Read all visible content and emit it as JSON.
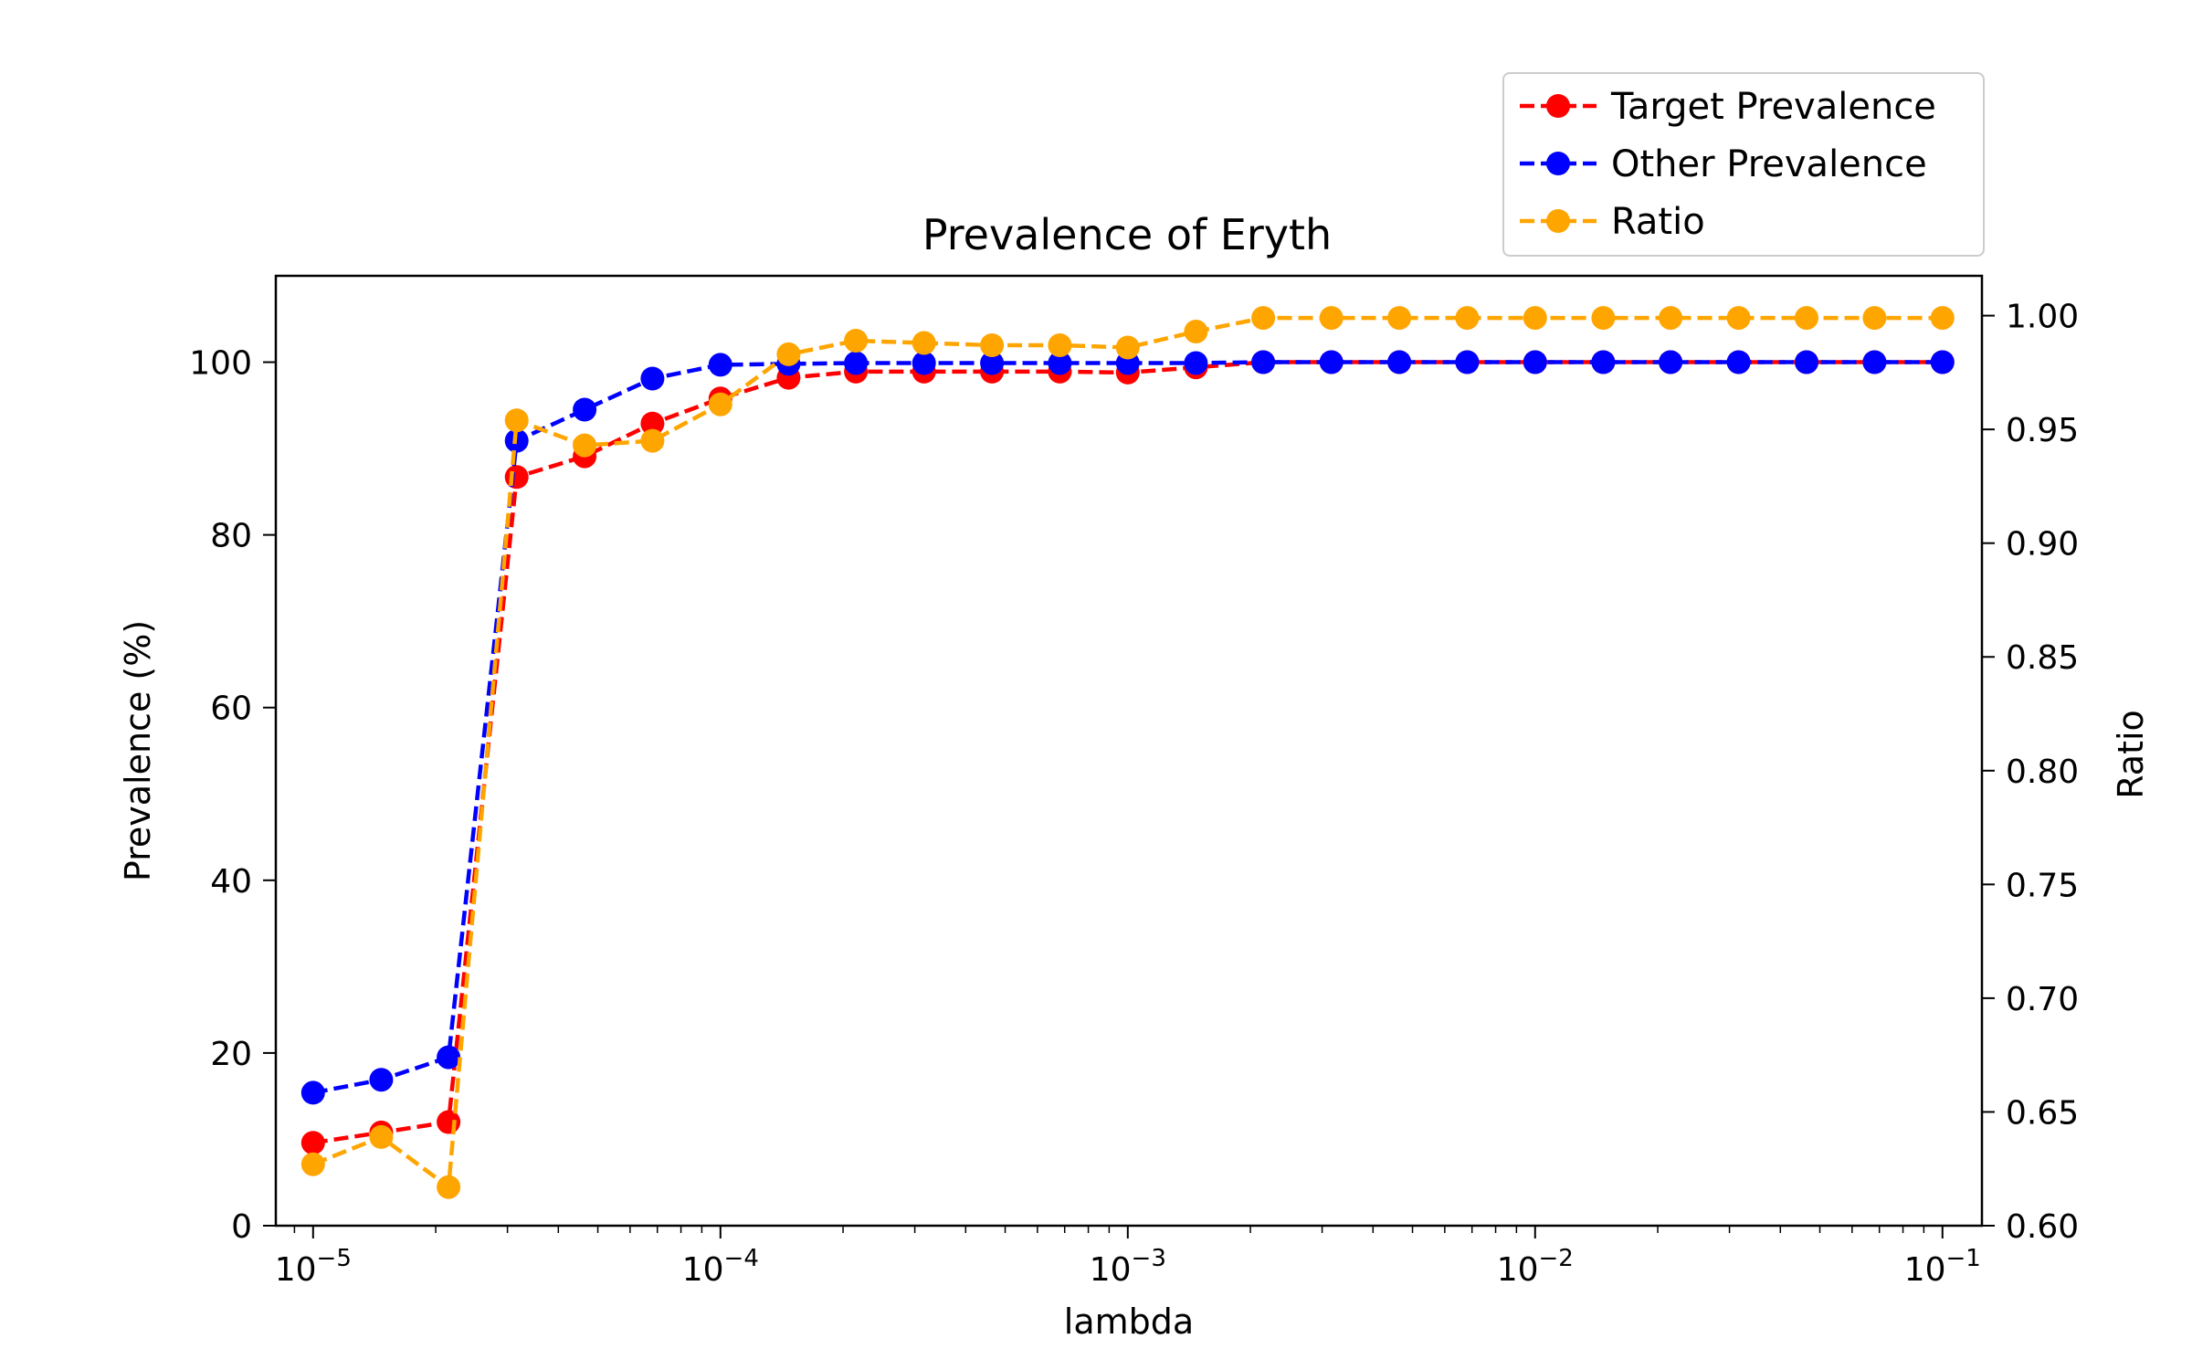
{
  "chart_data": {
    "type": "line",
    "title": "Prevalence of Eryth",
    "xlabel": "lambda",
    "ylabel": "Prevalence (%)",
    "y2label": "Ratio",
    "xscale": "log",
    "xlim": [
      8.1e-06,
      0.125
    ],
    "ylim": [
      0,
      110
    ],
    "y2lim": [
      0.6,
      1.0175
    ],
    "x_ticks": [
      {
        "value": 1e-05,
        "base": "10",
        "exp": "−5"
      },
      {
        "value": 0.0001,
        "base": "10",
        "exp": "−4"
      },
      {
        "value": 0.001,
        "base": "10",
        "exp": "−3"
      },
      {
        "value": 0.01,
        "base": "10",
        "exp": "−2"
      },
      {
        "value": 0.1,
        "base": "10",
        "exp": "−1"
      }
    ],
    "y_ticks": [
      0,
      20,
      40,
      60,
      80,
      100
    ],
    "y2_ticks": [
      "0.60",
      "0.65",
      "0.70",
      "0.75",
      "0.80",
      "0.85",
      "0.90",
      "0.95",
      "1.00"
    ],
    "grid": false,
    "legend_position": "top-right",
    "x": [
      1e-05,
      1.47e-05,
      2.15e-05,
      3.16e-05,
      4.64e-05,
      6.81e-05,
      0.0001,
      0.000147,
      0.000215,
      0.000316,
      0.000464,
      0.000681,
      0.001,
      0.00147,
      0.00215,
      0.00316,
      0.00464,
      0.00681,
      0.01,
      0.0147,
      0.0215,
      0.0316,
      0.0464,
      0.0681,
      0.1
    ],
    "series": [
      {
        "name": "Target Prevalence",
        "axis": "left",
        "color": "#ff0000",
        "values": [
          9.6,
          10.8,
          12.0,
          86.7,
          89.1,
          92.9,
          95.8,
          98.2,
          98.9,
          98.9,
          98.9,
          98.9,
          98.8,
          99.4,
          100,
          100,
          100,
          100,
          100,
          100,
          100,
          100,
          100,
          100,
          100
        ]
      },
      {
        "name": "Other Prevalence",
        "axis": "left",
        "color": "#0000ff",
        "values": [
          15.4,
          16.9,
          19.5,
          90.9,
          94.5,
          98.1,
          99.7,
          99.8,
          99.9,
          99.9,
          99.9,
          99.9,
          99.9,
          99.9,
          100,
          100,
          100,
          100,
          100,
          100,
          100,
          100,
          100,
          100,
          100
        ]
      },
      {
        "name": "Ratio",
        "axis": "right",
        "color": "#ffa500",
        "values": [
          0.627,
          0.639,
          0.617,
          0.954,
          0.943,
          0.945,
          0.961,
          0.983,
          0.989,
          0.988,
          0.987,
          0.987,
          0.986,
          0.993,
          0.999,
          0.999,
          0.999,
          0.999,
          0.999,
          0.999,
          0.999,
          0.999,
          0.999,
          0.999,
          0.999
        ]
      }
    ]
  }
}
